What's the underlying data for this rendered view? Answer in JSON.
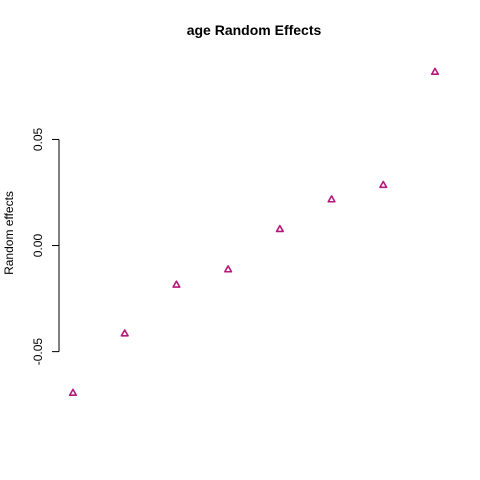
{
  "chart_data": {
    "type": "scatter",
    "title": "age Random Effects",
    "xlabel": "",
    "ylabel": "Random effects",
    "x": [
      1,
      2,
      3,
      4,
      5,
      6,
      7,
      8
    ],
    "y": [
      -0.0695,
      -0.0415,
      -0.0185,
      -0.0113,
      0.0077,
      0.0217,
      0.0285,
      0.0818
    ],
    "xlim": [
      1,
      8
    ],
    "ylim": [
      -0.0695,
      0.0818
    ],
    "yticks": [
      -0.05,
      0.0,
      0.05
    ],
    "ytick_labels": [
      "-0.05",
      "0.00",
      "0.05"
    ],
    "marker": "triangle",
    "marker_color": "#b5177a",
    "grid": false,
    "legend": "none"
  }
}
